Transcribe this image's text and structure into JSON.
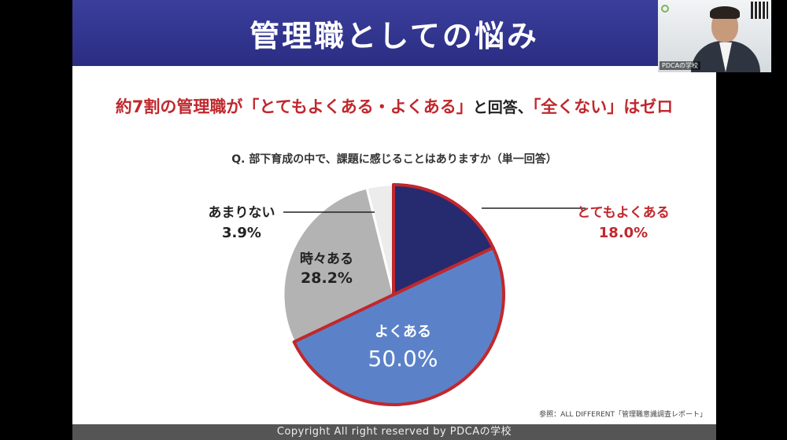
{
  "slide": {
    "title": "管理職としての悩み",
    "headline": {
      "part1": "約7割の管理職が「とてもよくある・よくある」",
      "part2": "と回答、",
      "part3": "「全くない」はゼロ"
    },
    "question": "Q. 部下育成の中で、課題に感じることはありますか（単一回答）",
    "source": "参照：ALL DIFFERENT「管理職意識調査レポート」",
    "footer": "Copyright All right reserved by PDCAの学校"
  },
  "webcam": {
    "label": "PDCAの学校"
  },
  "colors": {
    "title_bar": "#2a2d82",
    "accent_red": "#c0282d",
    "slice_very_often": "#262a6e",
    "slice_often": "#5b82c9",
    "slice_sometimes": "#b3b3b3",
    "slice_rarely": "#ececec"
  },
  "chart_data": {
    "type": "pie",
    "title": "Q. 部下育成の中で、課題に感じることはありますか（単一回答）",
    "start_angle_deg": 0,
    "direction": "clockwise",
    "slices": [
      {
        "label": "とてもよくある",
        "value_text": "18.0%",
        "value": 18.0,
        "color": "#262a6e",
        "highlighted": true
      },
      {
        "label": "よくある",
        "value_text": "50.0%",
        "value": 50.0,
        "color": "#5b82c9",
        "highlighted": true
      },
      {
        "label": "時々ある",
        "value_text": "28.2%",
        "value": 28.2,
        "color": "#b3b3b3",
        "highlighted": false
      },
      {
        "label": "あまりない",
        "value_text": "3.9%",
        "value": 3.9,
        "color": "#ececec",
        "highlighted": false
      }
    ],
    "highlight_outline_color": "#c0282d"
  }
}
